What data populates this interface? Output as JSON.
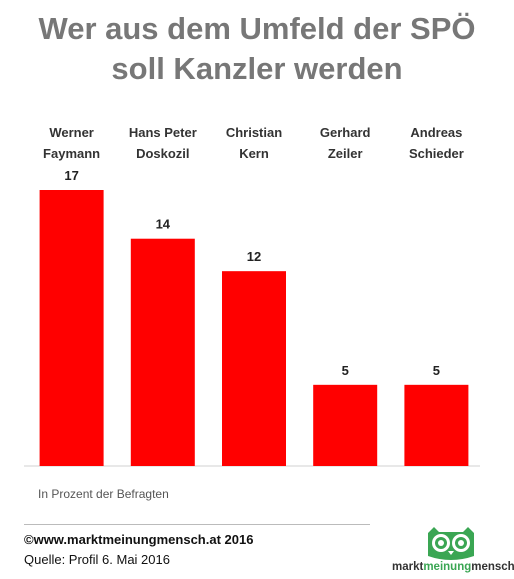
{
  "title_line1": "Wer aus dem Umfeld der SPÖ",
  "title_line2": "soll Kanzler werden",
  "chart_data": {
    "type": "bar",
    "title": "Wer aus dem Umfeld der SPÖ soll Kanzler werden",
    "categories": [
      [
        "Werner",
        "Faymann"
      ],
      [
        "Hans Peter",
        "Doskozil"
      ],
      [
        "Christian",
        "Kern"
      ],
      [
        "Gerhard",
        "Zeiler"
      ],
      [
        "Andreas",
        "Schieder"
      ]
    ],
    "values": [
      17,
      14,
      12,
      5,
      5
    ],
    "bar_color": "#ff0000",
    "ylim": [
      0,
      17
    ],
    "grid": false,
    "category_labels_position": "top"
  },
  "note": "In Prozent der Befragten",
  "copyright": "©www.marktmeinungmensch.at 2016",
  "source": "Quelle: Profil 6. Mai 2016",
  "logo": {
    "icon": "owl-icon",
    "text_part1": "markt",
    "text_part2": "meinung",
    "text_part3": "mensch",
    "accent_color": "#3aa653"
  }
}
